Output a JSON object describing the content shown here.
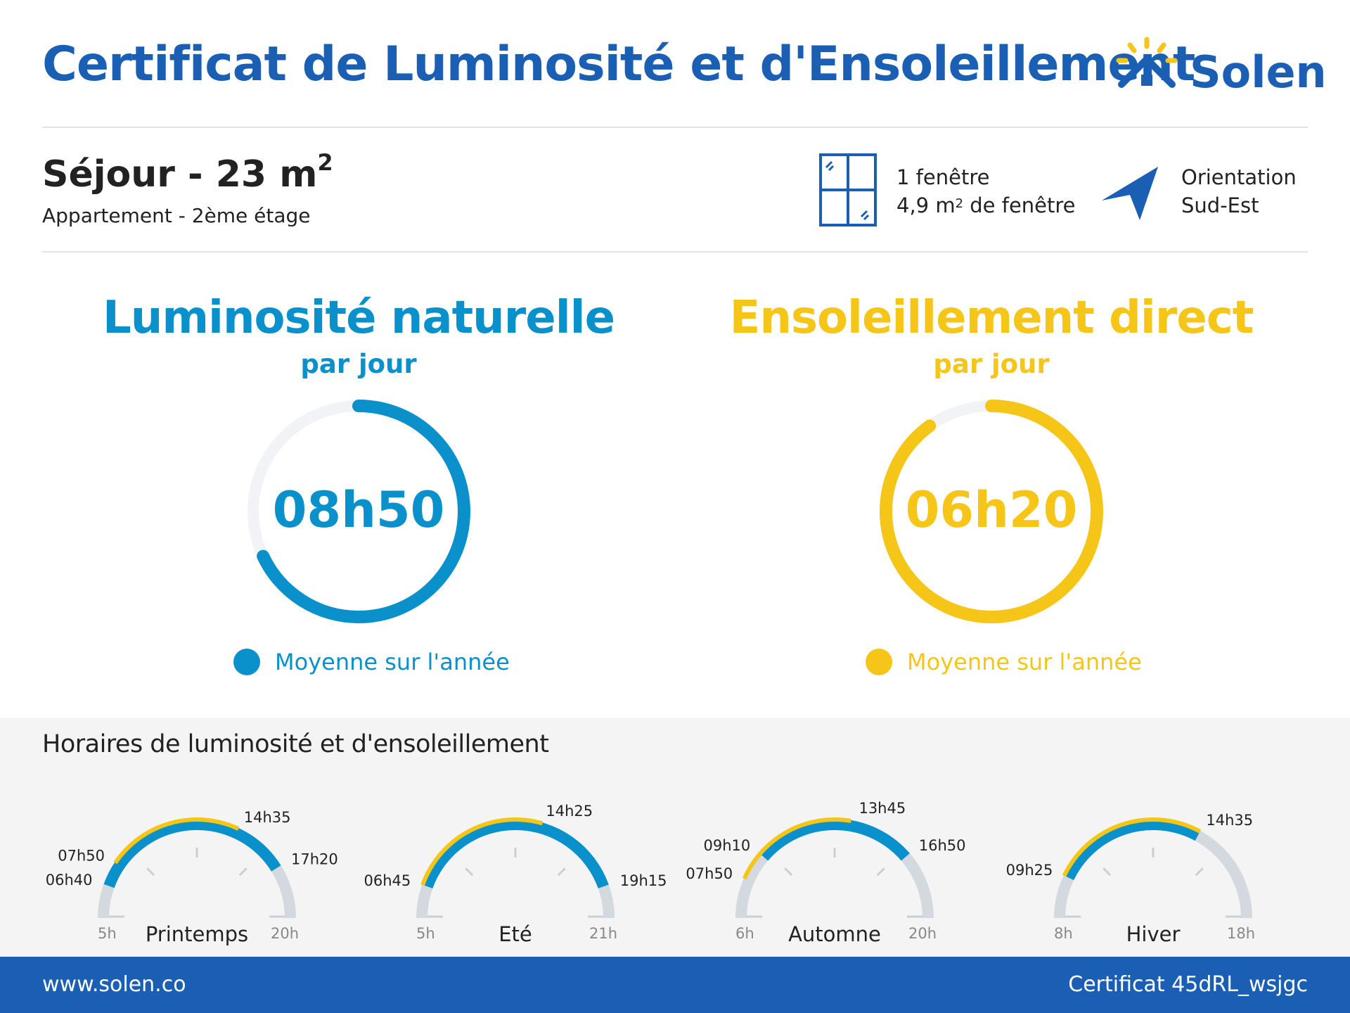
{
  "header": {
    "title": "Certificat de Luminosité et d'Ensoleillement",
    "logo_text": "Solen",
    "brand_color": "#1a5fb4",
    "logo_icon": "sun-house-icon"
  },
  "room": {
    "title": "Séjour - 23 m",
    "title_sup": "2",
    "subtitle": "Appartement - 2ème étage",
    "windows_line1": "1 fenêtre",
    "windows_line2_a": "4,9 m",
    "windows_sup": "2",
    "windows_line2_b": " de fenêtre",
    "orientation_line1": "Orientation",
    "orientation_line2": "Sud-Est"
  },
  "luminosity": {
    "title": "Luminosité naturelle",
    "subtitle": "par jour",
    "value": "08h50",
    "fraction": 0.68,
    "legend": "Moyenne sur l'année",
    "color": "#0a91cc"
  },
  "sunshine": {
    "title": "Ensoleillement direct",
    "subtitle": "par jour",
    "value": "06h20",
    "fraction": 0.9,
    "legend": "Moyenne sur l'année",
    "color": "#f5c518"
  },
  "schedule": {
    "title": "Horaires de luminosité et d'ensoleillement",
    "seasons": [
      {
        "name": "Printemps",
        "start_h": 5,
        "end_h": 20,
        "start_label": "5h",
        "end_label": "20h",
        "light": [
          "06h40",
          "17h20"
        ],
        "sun": [
          "07h50",
          "14h35"
        ]
      },
      {
        "name": "Eté",
        "start_h": 5,
        "end_h": 21,
        "start_label": "5h",
        "end_label": "21h",
        "light": [
          "06h45",
          "19h15"
        ],
        "sun": [
          "06h45",
          "14h25"
        ]
      },
      {
        "name": "Automne",
        "start_h": 6,
        "end_h": 20,
        "start_label": "6h",
        "end_label": "20h",
        "light": [
          "09h10",
          "16h50"
        ],
        "sun": [
          "07h50",
          "13h45"
        ]
      },
      {
        "name": "Hiver",
        "start_h": 8,
        "end_h": 18,
        "start_label": "8h",
        "end_label": "18h",
        "light": [
          "09h25",
          "14h35"
        ],
        "sun": [
          "09h25",
          "14h35"
        ]
      }
    ]
  },
  "footer": {
    "website": "www.solen.co",
    "certificate": "Certificat 45dRL_wsjgc"
  }
}
